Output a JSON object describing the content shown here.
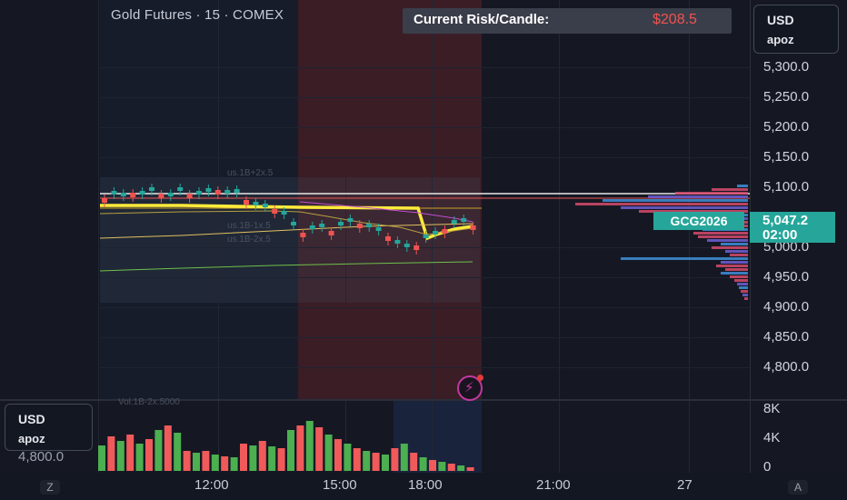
{
  "header": {
    "title": "Gold Futures · 15 · COMEX",
    "risk_label": "Current Risk/Candle:",
    "risk_value": "$208.5"
  },
  "currency_box": {
    "currency": "USD",
    "user": "apoz"
  },
  "volume_currency_box": {
    "currency": "USD",
    "user": "apoz"
  },
  "price_axis": {
    "labels": [
      "5,300.0",
      "5,250.0",
      "5,200.0",
      "5,150.0",
      "5,100.0",
      "5,000.0",
      "4,950.0",
      "4,900.0",
      "4,850.0",
      "4,800.0"
    ]
  },
  "volume_axis": {
    "labels": [
      "8K",
      "4K",
      "0"
    ]
  },
  "cut_off_label": "4,800.0",
  "time_axis": {
    "labels": [
      "12:00",
      "15:00",
      "18:00",
      "21:00",
      "27"
    ]
  },
  "ticker": {
    "symbol": "GCG2026",
    "price": "5,047.2",
    "countdown": "02:00"
  },
  "corner_buttons": {
    "left": "Z",
    "right": "A"
  },
  "colors": {
    "bull": "#26a69a",
    "bear": "#ef5350",
    "volume_bull": "#4caf50",
    "volume_bear": "#f05a5a",
    "session_red": "#3b1d26",
    "session_blue": "#19233c",
    "vwap_yellow": "#ffeb3b",
    "green_line": "#6fbf4a"
  },
  "icons": {
    "lightning": "lightning-alert-icon"
  }
}
